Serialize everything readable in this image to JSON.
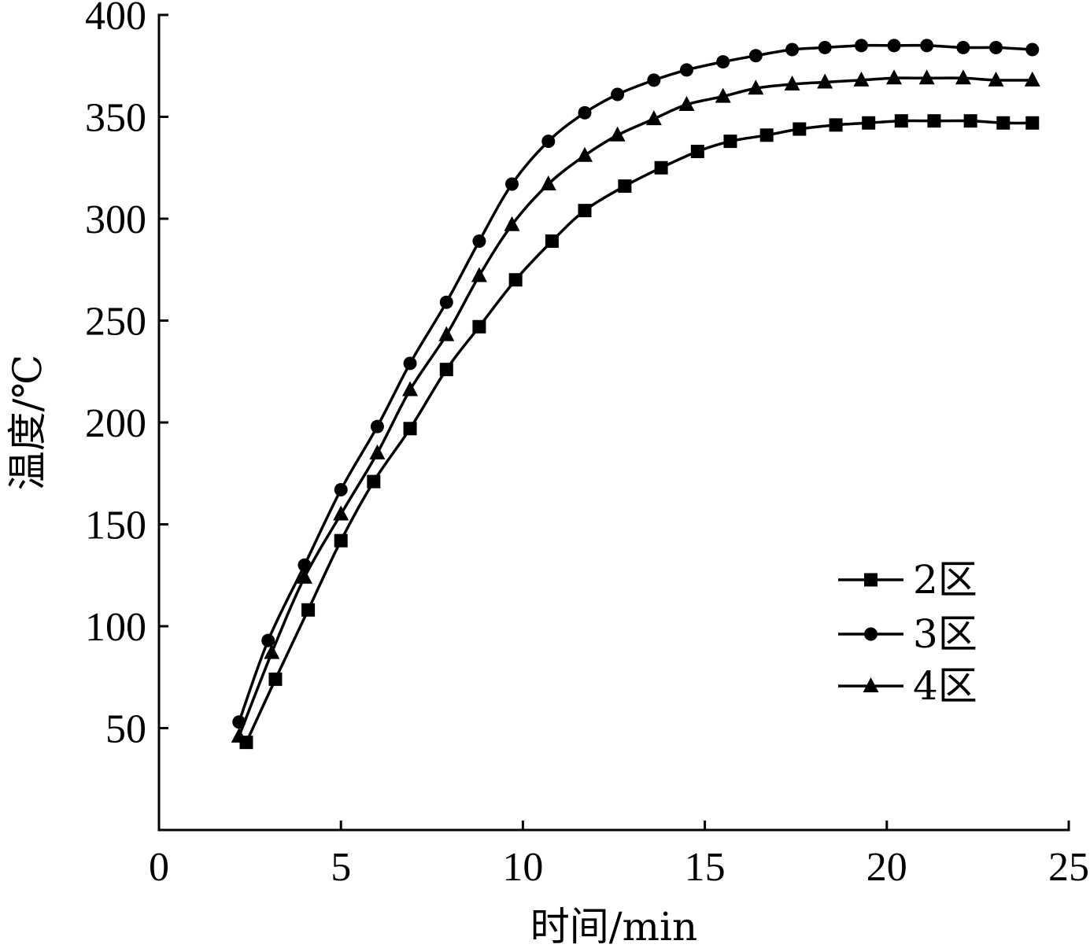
{
  "chart_data": {
    "type": "line",
    "title": "",
    "xlabel": "时间/min",
    "ylabel": "温度/℃",
    "xlim": [
      0,
      25
    ],
    "ylim": [
      0,
      400
    ],
    "xticks": [
      0,
      5,
      10,
      15,
      20,
      25
    ],
    "yticks": [
      50,
      100,
      150,
      200,
      250,
      300,
      350,
      400
    ],
    "xtick_labels": [
      "0",
      "5",
      "10",
      "15",
      "20",
      "25"
    ],
    "ytick_labels": [
      "50",
      "100",
      "150",
      "200",
      "250",
      "300",
      "350",
      "400"
    ],
    "grid": false,
    "legend_position": "right-middle",
    "series": [
      {
        "name": "2区",
        "marker": "square",
        "x": [
          2.4,
          3.2,
          4.1,
          5.0,
          5.9,
          6.9,
          7.9,
          8.8,
          9.8,
          10.8,
          11.7,
          12.8,
          13.8,
          14.8,
          15.7,
          16.7,
          17.6,
          18.6,
          19.5,
          20.4,
          21.3,
          22.3,
          23.2,
          24.0
        ],
        "y": [
          43,
          74,
          108,
          142,
          171,
          197,
          226,
          247,
          270,
          289,
          304,
          316,
          325,
          333,
          338,
          341,
          344,
          346,
          347,
          348,
          348,
          348,
          347,
          347
        ]
      },
      {
        "name": "3区",
        "marker": "circle",
        "x": [
          2.2,
          3.0,
          4.0,
          5.0,
          6.0,
          6.9,
          7.9,
          8.8,
          9.7,
          10.7,
          11.7,
          12.6,
          13.6,
          14.5,
          15.5,
          16.4,
          17.4,
          18.3,
          19.3,
          20.2,
          21.1,
          22.1,
          23.0,
          24.0
        ],
        "y": [
          53,
          93,
          130,
          167,
          198,
          229,
          259,
          289,
          317,
          338,
          352,
          361,
          368,
          373,
          377,
          380,
          383,
          384,
          385,
          385,
          385,
          384,
          384,
          383
        ]
      },
      {
        "name": "4区",
        "marker": "triangle",
        "x": [
          2.2,
          3.1,
          4.0,
          5.0,
          6.0,
          6.9,
          7.9,
          8.8,
          9.7,
          10.7,
          11.7,
          12.6,
          13.6,
          14.5,
          15.5,
          16.4,
          17.4,
          18.3,
          19.3,
          20.2,
          21.1,
          22.1,
          23.0,
          24.0
        ],
        "y": [
          46,
          87,
          124,
          155,
          185,
          216,
          243,
          272,
          297,
          317,
          331,
          341,
          349,
          356,
          360,
          364,
          366,
          367,
          368,
          369,
          369,
          369,
          368,
          368
        ]
      }
    ]
  }
}
